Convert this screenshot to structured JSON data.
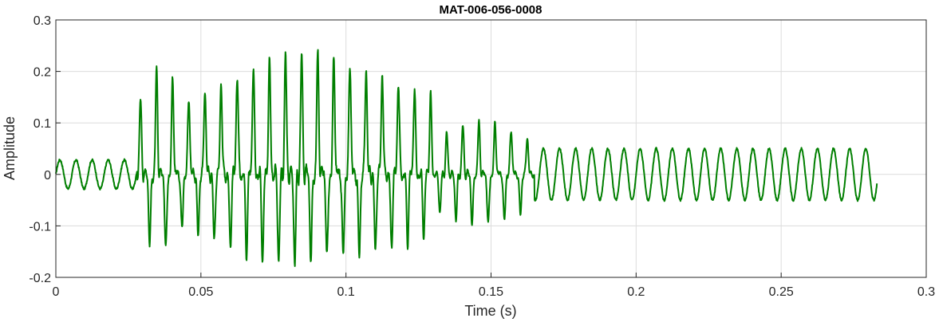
{
  "chart_data": {
    "type": "line",
    "title": "MAT-006-056-0008",
    "xlabel": "Time (s)",
    "ylabel": "Amplitude",
    "xlim": [
      0,
      0.3
    ],
    "ylim": [
      -0.2,
      0.3
    ],
    "xticks": [
      0,
      0.05,
      0.1,
      0.15,
      0.2,
      0.25,
      0.3
    ],
    "xtick_labels": [
      "0",
      "0.05",
      "0.1",
      "0.15",
      "0.2",
      "0.25",
      "0.3"
    ],
    "yticks": [
      -0.2,
      -0.1,
      0,
      0.1,
      0.2,
      0.3
    ],
    "ytick_labels": [
      "-0.2",
      "-0.1",
      "0",
      "0.1",
      "0.2",
      "0.3"
    ],
    "grid": true,
    "line_color": "#007f00",
    "series": [
      {
        "duration": 0.283,
        "segments": [
          {
            "t_start": 0.0,
            "t_end": 0.028,
            "frequency_hz": 180,
            "amplitude": 0.028
          },
          {
            "t_start": 0.028,
            "t_end": 0.045,
            "frequency_hz": 180,
            "amplitude_max": 0.2,
            "amplitude_min": -0.15
          },
          {
            "t_start": 0.045,
            "t_end": 0.13,
            "frequency_hz": 180,
            "amplitude_max": 0.228,
            "amplitude_min": -0.17
          },
          {
            "t_start": 0.13,
            "t_end": 0.165,
            "frequency_hz": 180,
            "amplitude_max": 0.1,
            "amplitude_min": -0.1
          },
          {
            "t_start": 0.165,
            "t_end": 0.283,
            "frequency_hz": 180,
            "amplitude": 0.05
          }
        ],
        "peak_values": [
          {
            "t": 0.0385,
            "y": 0.2
          },
          {
            "t": 0.0595,
            "y": 0.222
          },
          {
            "t": 0.0635,
            "y": 0.228
          },
          {
            "t": 0.0875,
            "y": 0.23
          },
          {
            "t": 0.1005,
            "y": 0.2
          },
          {
            "t": 0.1135,
            "y": 0.19
          }
        ],
        "trough_values": [
          {
            "t": 0.0375,
            "y": -0.15
          },
          {
            "t": 0.1155,
            "y": -0.17
          },
          {
            "t": 0.1255,
            "y": -0.17
          }
        ]
      }
    ]
  }
}
